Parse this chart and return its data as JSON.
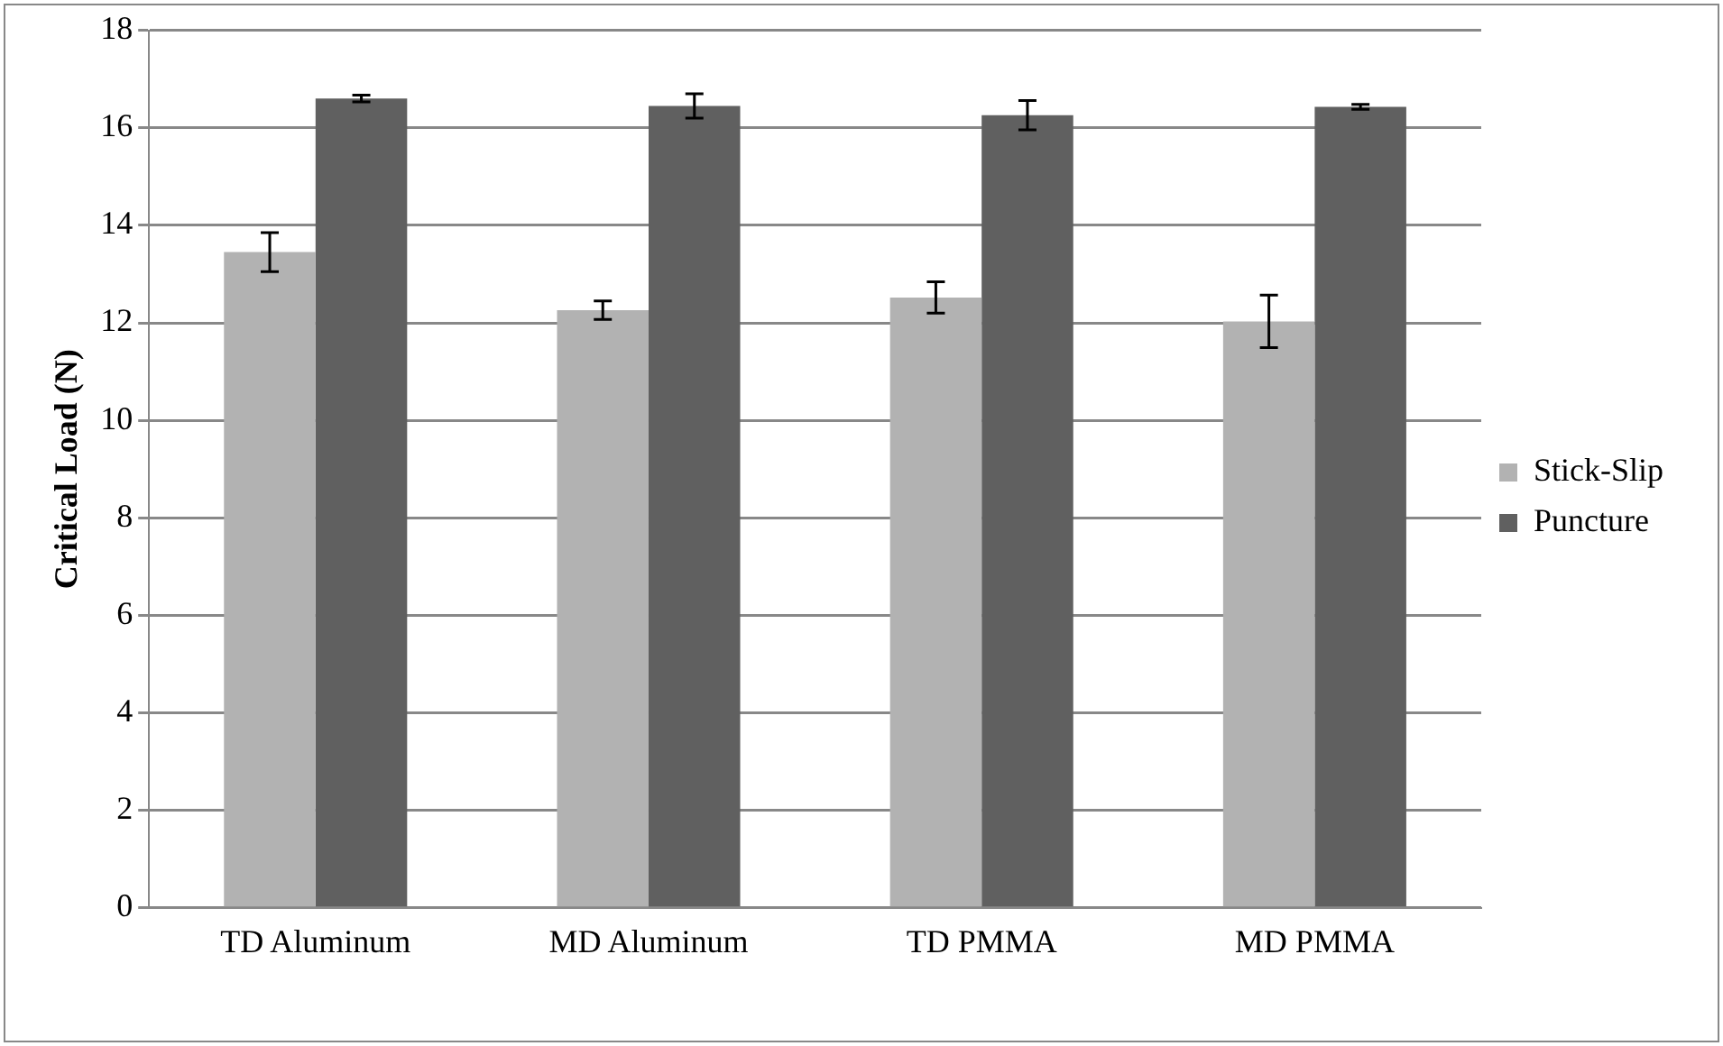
{
  "chart_data": {
    "type": "bar",
    "ylabel": "Critical Load (N)",
    "categories": [
      "TD Aluminum",
      "MD Aluminum",
      "TD PMMA",
      "MD PMMA"
    ],
    "series": [
      {
        "name": "Stick-Slip",
        "color": "#b2b2b2",
        "values": [
          13.45,
          12.26,
          12.52,
          12.03
        ],
        "errors": [
          0.4,
          0.19,
          0.32,
          0.54
        ]
      },
      {
        "name": "Puncture",
        "color": "#606060",
        "values": [
          16.6,
          16.45,
          16.26,
          16.43
        ],
        "errors": [
          0.07,
          0.25,
          0.3,
          0.05
        ]
      }
    ],
    "ylim": [
      0,
      18
    ],
    "yticks": [
      0,
      2,
      4,
      6,
      8,
      10,
      12,
      14,
      16,
      18
    ],
    "grid": "y",
    "legend": "right"
  }
}
